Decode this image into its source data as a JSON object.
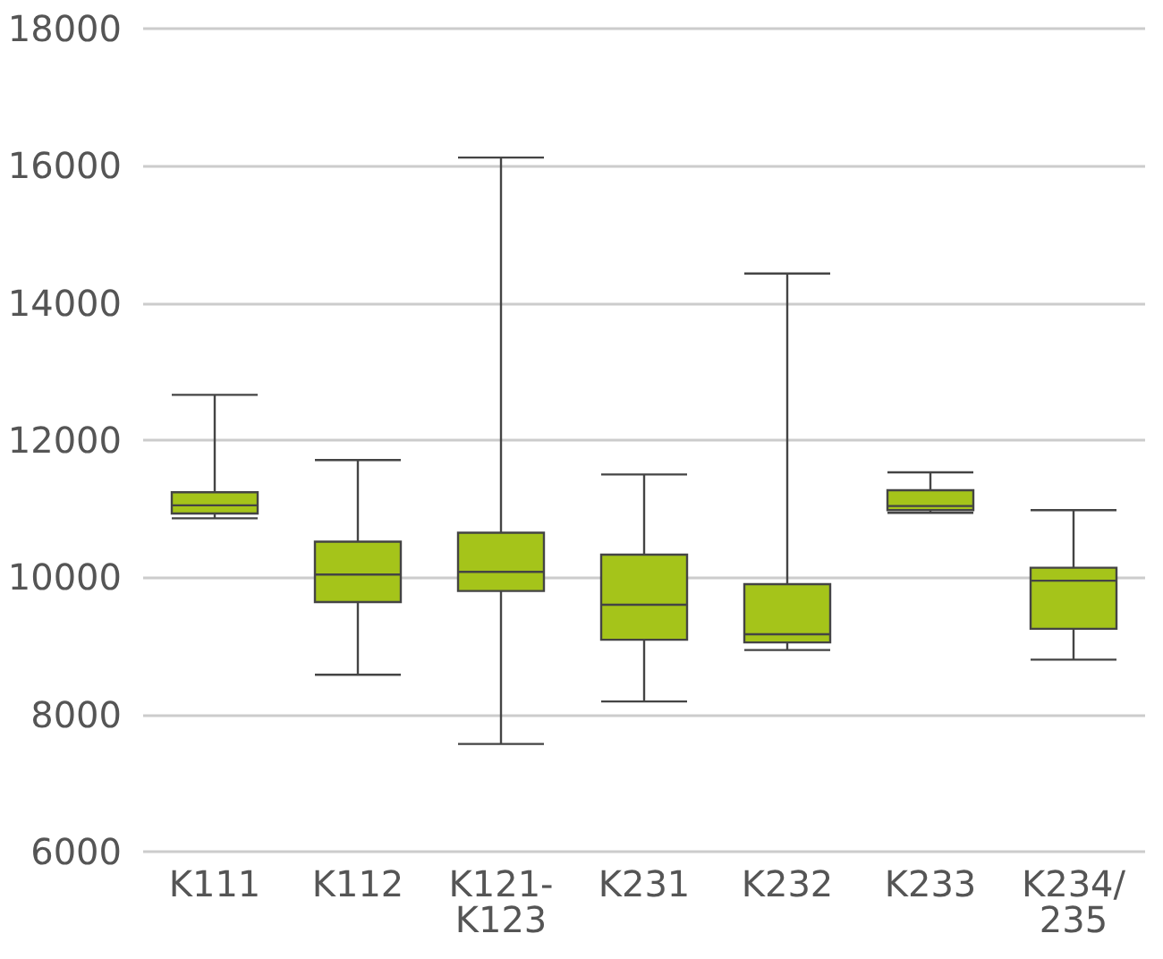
{
  "chart_data": {
    "type": "box",
    "categories": [
      "K111",
      "K112",
      "K121-K123",
      "K231",
      "K232",
      "K233",
      "K234/235"
    ],
    "color": "#a5c41a",
    "boxes": [
      {
        "low": 10860,
        "q1": 10930,
        "median": 11050,
        "q3": 11240,
        "high": 12660
      },
      {
        "low": 8580,
        "q1": 9640,
        "median": 10040,
        "q3": 10520,
        "high": 11710
      },
      {
        "low": 7570,
        "q1": 9800,
        "median": 10080,
        "q3": 10650,
        "high": 16120
      },
      {
        "low": 8190,
        "q1": 9090,
        "median": 9600,
        "q3": 10330,
        "high": 11500
      },
      {
        "low": 8940,
        "q1": 9050,
        "median": 9170,
        "q3": 9900,
        "high": 14430
      },
      {
        "low": 10940,
        "q1": 10980,
        "median": 11040,
        "q3": 11270,
        "high": 11530
      },
      {
        "low": 8800,
        "q1": 9250,
        "median": 9950,
        "q3": 10140,
        "high": 10980
      }
    ],
    "ylim": [
      6000,
      18000
    ],
    "yticks": [
      6000,
      8000,
      10000,
      12000,
      14000,
      16000,
      18000
    ],
    "grid": "y"
  }
}
